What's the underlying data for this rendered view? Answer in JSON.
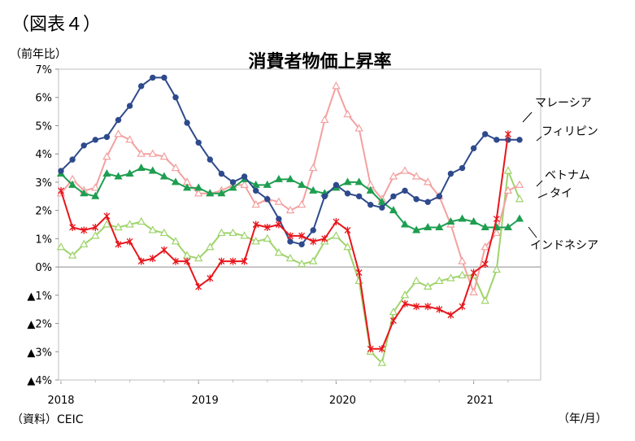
{
  "figure_label": "（図表４）",
  "source": "（資料）CEIC",
  "chart_data": {
    "type": "line",
    "title": "消費者物価上昇率",
    "y_unit_label": "（前年比）",
    "x_unit_label": "（年/月）",
    "ylim": [
      -4,
      7
    ],
    "y_ticks": [
      {
        "value": 7,
        "label": "7%"
      },
      {
        "value": 6,
        "label": "6%"
      },
      {
        "value": 5,
        "label": "5%"
      },
      {
        "value": 4,
        "label": "4%"
      },
      {
        "value": 3,
        "label": "3%"
      },
      {
        "value": 2,
        "label": "2%"
      },
      {
        "value": 1,
        "label": "1%"
      },
      {
        "value": 0,
        "label": "0%"
      },
      {
        "value": -1,
        "label": "▲1%"
      },
      {
        "value": -2,
        "label": "▲2%"
      },
      {
        "value": -3,
        "label": "▲3%"
      },
      {
        "value": -4,
        "label": "▲4%"
      }
    ],
    "x_ticks": [
      {
        "index": 0,
        "label": "2018"
      },
      {
        "index": 12,
        "label": "2019"
      },
      {
        "index": 24,
        "label": "2020"
      },
      {
        "index": 36,
        "label": "2021"
      }
    ],
    "x_start": "2018-01",
    "n_points": 41,
    "grid": false,
    "series": [
      {
        "name": "マレーシア",
        "color": "#e8151b",
        "marker": "star",
        "values": [
          2.7,
          1.4,
          1.3,
          1.4,
          1.8,
          0.8,
          0.9,
          0.2,
          0.3,
          0.6,
          0.2,
          0.2,
          -0.7,
          -0.4,
          0.2,
          0.2,
          0.2,
          1.5,
          1.4,
          1.5,
          1.1,
          1.1,
          0.9,
          1.0,
          1.6,
          1.3,
          -0.2,
          -2.9,
          -2.9,
          -1.9,
          -1.3,
          -1.4,
          -1.4,
          -1.5,
          -1.7,
          -1.4,
          -0.2,
          0.1,
          1.7,
          4.7
        ]
      },
      {
        "name": "フィリピン",
        "color": "#2e4a8c",
        "marker": "circle",
        "values": [
          3.4,
          3.8,
          4.3,
          4.5,
          4.6,
          5.2,
          5.7,
          6.4,
          6.7,
          6.7,
          6.0,
          5.1,
          4.4,
          3.8,
          3.3,
          3.0,
          3.2,
          2.7,
          2.4,
          1.7,
          0.9,
          0.8,
          1.3,
          2.5,
          2.9,
          2.6,
          2.5,
          2.2,
          2.1,
          2.5,
          2.7,
          2.4,
          2.3,
          2.5,
          3.3,
          3.5,
          4.2,
          4.7,
          4.5,
          4.5,
          4.5
        ]
      },
      {
        "name": "ベトナム",
        "color": "#f4a0a0",
        "marker": "triangle-outline",
        "values": [
          2.6,
          3.1,
          2.7,
          2.8,
          3.9,
          4.7,
          4.5,
          4.0,
          4.0,
          3.9,
          3.5,
          3.0,
          2.6,
          2.6,
          2.7,
          2.9,
          2.9,
          2.2,
          2.4,
          2.3,
          2.0,
          2.2,
          3.5,
          5.2,
          6.4,
          5.4,
          4.9,
          2.9,
          2.4,
          3.2,
          3.4,
          3.2,
          3.0,
          2.5,
          1.5,
          0.2,
          -0.9,
          0.7,
          1.2,
          2.7,
          2.9
        ]
      },
      {
        "name": "タイ",
        "color": "#9ed46a",
        "marker": "triangle-outline",
        "values": [
          0.7,
          0.4,
          0.8,
          1.1,
          1.5,
          1.4,
          1.5,
          1.6,
          1.3,
          1.2,
          0.9,
          0.4,
          0.3,
          0.7,
          1.2,
          1.2,
          1.1,
          0.9,
          1.0,
          0.5,
          0.3,
          0.1,
          0.2,
          0.9,
          1.1,
          0.7,
          -0.5,
          -3.0,
          -3.4,
          -1.6,
          -1.0,
          -0.5,
          -0.7,
          -0.5,
          -0.4,
          -0.3,
          -0.3,
          -1.2,
          -0.1,
          3.4,
          2.4
        ]
      },
      {
        "name": "インドネシア",
        "color": "#1e9e50",
        "marker": "triangle",
        "values": [
          3.3,
          2.9,
          2.6,
          2.5,
          3.3,
          3.2,
          3.3,
          3.5,
          3.4,
          3.2,
          3.0,
          2.8,
          2.8,
          2.6,
          2.6,
          2.8,
          3.1,
          2.9,
          2.9,
          3.1,
          3.1,
          2.9,
          2.7,
          2.6,
          2.8,
          3.0,
          3.0,
          2.7,
          2.3,
          2.0,
          1.5,
          1.3,
          1.4,
          1.4,
          1.6,
          1.7,
          1.6,
          1.4,
          1.4,
          1.4,
          1.7
        ]
      }
    ]
  }
}
